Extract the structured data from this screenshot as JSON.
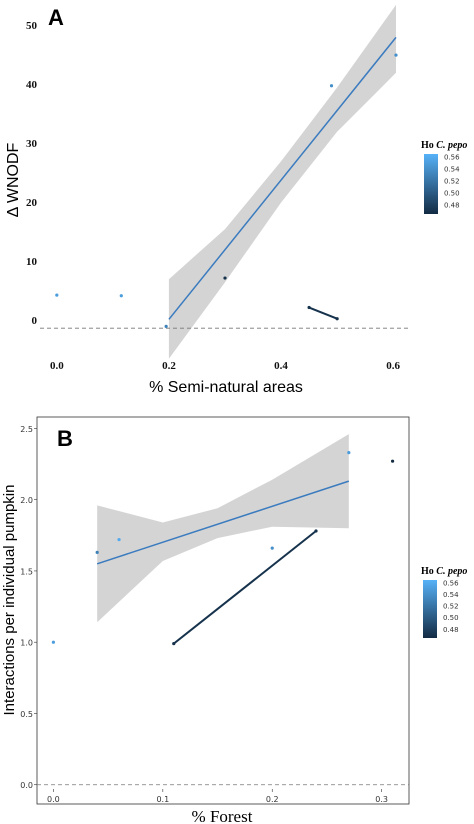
{
  "chart_data": [
    {
      "panel": "A",
      "type": "scatter",
      "xlabel": "% Semi-natural areas",
      "ylabel": "Δ WNODF",
      "xlim": [
        -0.03,
        0.63
      ],
      "ylim": [
        -5,
        54
      ],
      "xticks": [
        0.0,
        0.2,
        0.4,
        0.6
      ],
      "xtick_labels": [
        "0.0",
        "0.2",
        "0.4",
        "0.6"
      ],
      "yticks": [
        0,
        10,
        20,
        30,
        40,
        50
      ],
      "ytick_labels": [
        "0",
        "10",
        "20",
        "30",
        "40",
        "50"
      ],
      "reference_line_y": -1.3,
      "points": [
        {
          "x": 0.0,
          "y": 4.3,
          "ho": 0.55
        },
        {
          "x": 0.115,
          "y": 4.2,
          "ho": 0.55
        },
        {
          "x": 0.195,
          "y": -1.0,
          "ho": 0.53
        },
        {
          "x": 0.3,
          "y": 7.2,
          "ho": 0.47
        },
        {
          "x": 0.49,
          "y": 39.8,
          "ho": 0.54
        },
        {
          "x": 0.605,
          "y": 45.0,
          "ho": 0.54
        }
      ],
      "segments": [
        {
          "x1": 0.45,
          "y1": 2.2,
          "x2": 0.5,
          "y2": 0.3,
          "ho": 0.47
        }
      ],
      "fit": {
        "x": [
          0.2,
          0.605
        ],
        "y": [
          0.2,
          48.0
        ]
      },
      "band": {
        "x": [
          0.2,
          0.3,
          0.4,
          0.5,
          0.605
        ],
        "lower": [
          -6.5,
          6.5,
          20.0,
          32.0,
          42.0
        ],
        "upper": [
          7.0,
          15.5,
          27.0,
          39.5,
          53.5
        ]
      },
      "legend": {
        "title_prefix": "Ho ",
        "title_species": "C. pepo",
        "ticks": [
          "0.56",
          "0.54",
          "0.52",
          "0.50",
          "0.48"
        ],
        "tick_values": [
          0.56,
          0.54,
          0.52,
          0.5,
          0.48
        ],
        "range": [
          0.465,
          0.565
        ],
        "position": "right"
      },
      "grid": false,
      "colors": {
        "low": "#132B43",
        "high": "#56B1F7",
        "fit": "#3a7bbf",
        "band": "#cccccc",
        "reference": "#777777"
      }
    },
    {
      "panel": "B",
      "type": "scatter",
      "xlabel": "% Forest",
      "ylabel": "Interactions per individual pumpkin",
      "xlim": [
        -0.015,
        0.325
      ],
      "ylim": [
        -0.03,
        2.58
      ],
      "xticks": [
        0.0,
        0.1,
        0.2,
        0.3
      ],
      "xtick_labels": [
        "0.0",
        "0.1",
        "0.2",
        "0.3"
      ],
      "yticks": [
        0.0,
        0.5,
        1.0,
        1.5,
        2.0,
        2.5
      ],
      "ytick_labels": [
        "0.0",
        "0.5",
        "1.0",
        "1.5",
        "2.0",
        "2.5"
      ],
      "reference_line_y": 0.0,
      "points": [
        {
          "x": 0.0,
          "y": 1.0,
          "ho": 0.55
        },
        {
          "x": 0.04,
          "y": 1.63,
          "ho": 0.53
        },
        {
          "x": 0.06,
          "y": 1.72,
          "ho": 0.56
        },
        {
          "x": 0.2,
          "y": 1.66,
          "ho": 0.54
        },
        {
          "x": 0.27,
          "y": 2.33,
          "ho": 0.55
        },
        {
          "x": 0.31,
          "y": 2.27,
          "ho": 0.46
        }
      ],
      "segments": [
        {
          "x1": 0.11,
          "y1": 0.99,
          "x2": 0.24,
          "y2": 1.78,
          "ho": 0.47
        }
      ],
      "fit": {
        "x": [
          0.04,
          0.27
        ],
        "y": [
          1.55,
          2.13
        ]
      },
      "band": {
        "x": [
          0.04,
          0.1,
          0.15,
          0.2,
          0.27
        ],
        "lower": [
          1.14,
          1.57,
          1.73,
          1.81,
          1.8
        ],
        "upper": [
          1.96,
          1.84,
          1.94,
          2.14,
          2.46
        ]
      },
      "legend": {
        "title_prefix": "Ho ",
        "title_species": "C. pepo",
        "ticks": [
          "0.56",
          "0.54",
          "0.52",
          "0.50",
          "0.48"
        ],
        "tick_values": [
          0.56,
          0.54,
          0.52,
          0.5,
          0.48
        ],
        "range": [
          0.465,
          0.565
        ],
        "position": "right"
      },
      "grid": false,
      "colors": {
        "low": "#132B43",
        "high": "#56B1F7",
        "fit": "#3a7bbf",
        "band": "#cccccc",
        "reference": "#777777"
      }
    }
  ],
  "panel_a": {
    "letter": "A",
    "xlabel": "% Semi-natural areas",
    "ylabel": "Δ WNODF"
  },
  "panel_b": {
    "letter": "B",
    "xlabel": "% Forest",
    "ylabel": "Interactions per individual pumpkin"
  },
  "legend_a": {
    "title_prefix": "Ho ",
    "title_species": "C. pepo"
  },
  "legend_b": {
    "title_prefix": "Ho ",
    "title_species": "C. pepo"
  }
}
